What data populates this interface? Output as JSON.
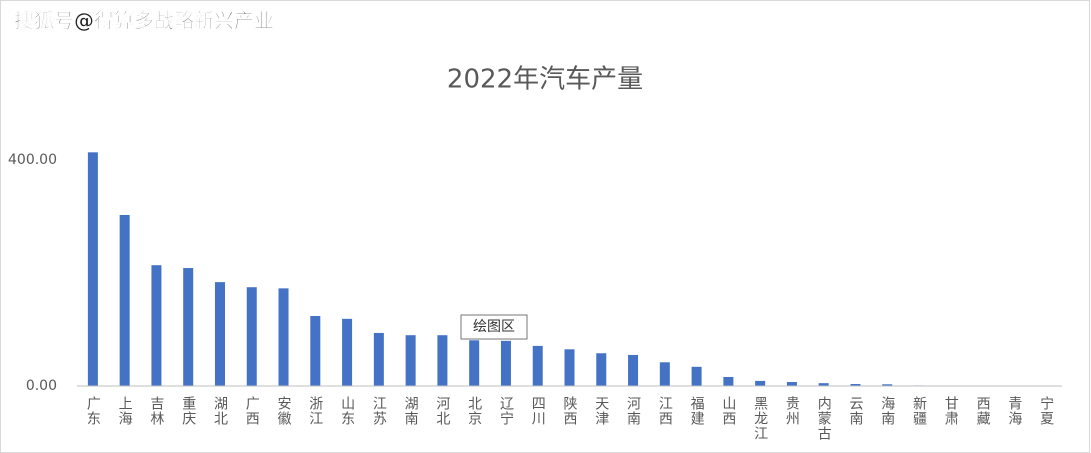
{
  "watermark": "搜狐号@得算多战略新兴产业",
  "tooltip": "绘图区",
  "chart_data": {
    "type": "bar",
    "title": "2022年汽车产量",
    "categories": [
      "广东",
      "上海",
      "吉林",
      "重庆",
      "湖北",
      "广西",
      "安徽",
      "浙江",
      "山东",
      "江苏",
      "湖南",
      "河北",
      "北京",
      "辽宁",
      "四川",
      "陕西",
      "天津",
      "河南",
      "江西",
      "福建",
      "山西",
      "黑龙江",
      "贵州",
      "内蒙古",
      "云南",
      "海南",
      "新疆",
      "甘肃",
      "西藏",
      "青海",
      "宁夏"
    ],
    "values": [
      414,
      303,
      214,
      209,
      184,
      175,
      173,
      124,
      119,
      94,
      90,
      90,
      81,
      80,
      71,
      65,
      58,
      55,
      42,
      34,
      16,
      9,
      7,
      5,
      3.5,
      3,
      1,
      0.5,
      0,
      0,
      0.3
    ],
    "color": "#4472c4",
    "ylim": [
      0,
      450
    ],
    "yticks": [
      {
        "value": 0,
        "label": "0.00"
      },
      {
        "value": 400,
        "label": "400.00"
      }
    ],
    "grid": false
  }
}
